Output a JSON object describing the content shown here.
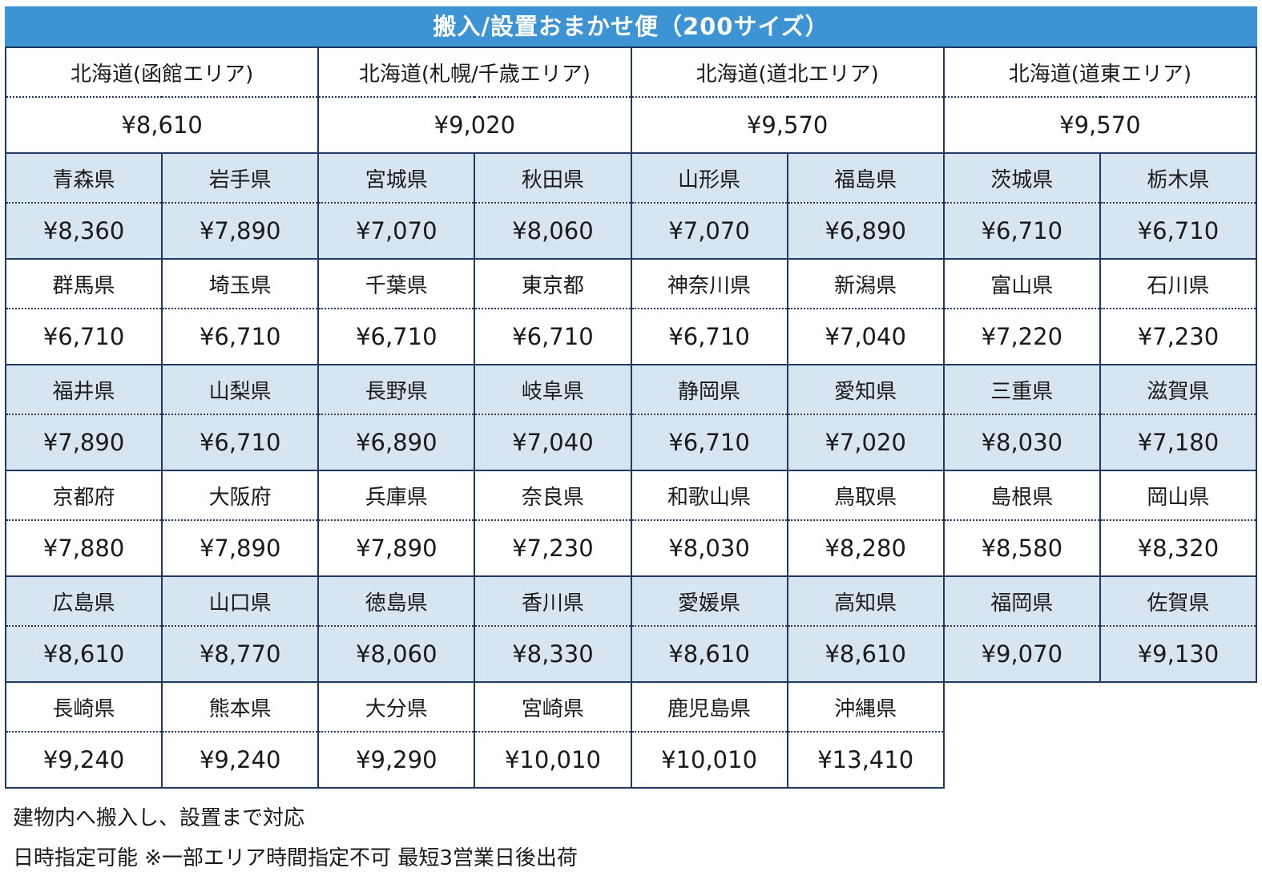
{
  "title": "搬入/設置おまかせ便（200サイズ）",
  "colors": {
    "header_bg": "#3D94D4",
    "header_text": "#FFFFFF",
    "row_shaded_bg": "#D7E5F1",
    "row_plain_bg": "#FFFFFF",
    "border": "#1F3864",
    "text": "#1A1A1A"
  },
  "table": {
    "hokkaido": {
      "shaded": false,
      "cells": [
        {
          "name": "北海道(函館エリア)",
          "price": "¥8,610"
        },
        {
          "name": "北海道(札幌/千歳エリア)",
          "price": "¥9,020"
        },
        {
          "name": "北海道(道北エリア)",
          "price": "¥9,570"
        },
        {
          "name": "北海道(道東エリア)",
          "price": "¥9,570"
        }
      ]
    },
    "rows": [
      {
        "shaded": true,
        "cells": [
          {
            "name": "青森県",
            "price": "¥8,360"
          },
          {
            "name": "岩手県",
            "price": "¥7,890"
          },
          {
            "name": "宮城県",
            "price": "¥7,070"
          },
          {
            "name": "秋田県",
            "price": "¥8,060"
          },
          {
            "name": "山形県",
            "price": "¥7,070"
          },
          {
            "name": "福島県",
            "price": "¥6,890"
          },
          {
            "name": "茨城県",
            "price": "¥6,710"
          },
          {
            "name": "栃木県",
            "price": "¥6,710"
          }
        ]
      },
      {
        "shaded": false,
        "cells": [
          {
            "name": "群馬県",
            "price": "¥6,710"
          },
          {
            "name": "埼玉県",
            "price": "¥6,710"
          },
          {
            "name": "千葉県",
            "price": "¥6,710"
          },
          {
            "name": "東京都",
            "price": "¥6,710"
          },
          {
            "name": "神奈川県",
            "price": "¥6,710"
          },
          {
            "name": "新潟県",
            "price": "¥7,040"
          },
          {
            "name": "富山県",
            "price": "¥7,220"
          },
          {
            "name": "石川県",
            "price": "¥7,230"
          }
        ]
      },
      {
        "shaded": true,
        "cells": [
          {
            "name": "福井県",
            "price": "¥7,890"
          },
          {
            "name": "山梨県",
            "price": "¥6,710"
          },
          {
            "name": "長野県",
            "price": "¥6,890"
          },
          {
            "name": "岐阜県",
            "price": "¥7,040"
          },
          {
            "name": "静岡県",
            "price": "¥6,710"
          },
          {
            "name": "愛知県",
            "price": "¥7,020"
          },
          {
            "name": "三重県",
            "price": "¥8,030"
          },
          {
            "name": "滋賀県",
            "price": "¥7,180"
          }
        ]
      },
      {
        "shaded": false,
        "cells": [
          {
            "name": "京都府",
            "price": "¥7,880"
          },
          {
            "name": "大阪府",
            "price": "¥7,890"
          },
          {
            "name": "兵庫県",
            "price": "¥7,890"
          },
          {
            "name": "奈良県",
            "price": "¥7,230"
          },
          {
            "name": "和歌山県",
            "price": "¥8,030"
          },
          {
            "name": "鳥取県",
            "price": "¥8,280"
          },
          {
            "name": "島根県",
            "price": "¥8,580"
          },
          {
            "name": "岡山県",
            "price": "¥8,320"
          }
        ]
      },
      {
        "shaded": true,
        "cells": [
          {
            "name": "広島県",
            "price": "¥8,610"
          },
          {
            "name": "山口県",
            "price": "¥8,770"
          },
          {
            "name": "徳島県",
            "price": "¥8,060"
          },
          {
            "name": "香川県",
            "price": "¥8,330"
          },
          {
            "name": "愛媛県",
            "price": "¥8,610"
          },
          {
            "name": "高知県",
            "price": "¥8,610"
          },
          {
            "name": "福岡県",
            "price": "¥9,070"
          },
          {
            "name": "佐賀県",
            "price": "¥9,130"
          }
        ]
      },
      {
        "shaded": false,
        "cells": [
          {
            "name": "長崎県",
            "price": "¥9,240"
          },
          {
            "name": "熊本県",
            "price": "¥9,240"
          },
          {
            "name": "大分県",
            "price": "¥9,290"
          },
          {
            "name": "宮崎県",
            "price": "¥10,010"
          },
          {
            "name": "鹿児島県",
            "price": "¥10,010"
          },
          {
            "name": "沖縄県",
            "price": "¥13,410"
          }
        ]
      }
    ]
  },
  "notes": [
    "建物内へ搬入し、設置まで対応",
    "日時指定可能 ※一部エリア時間指定不可 最短3営業日後出荷"
  ]
}
